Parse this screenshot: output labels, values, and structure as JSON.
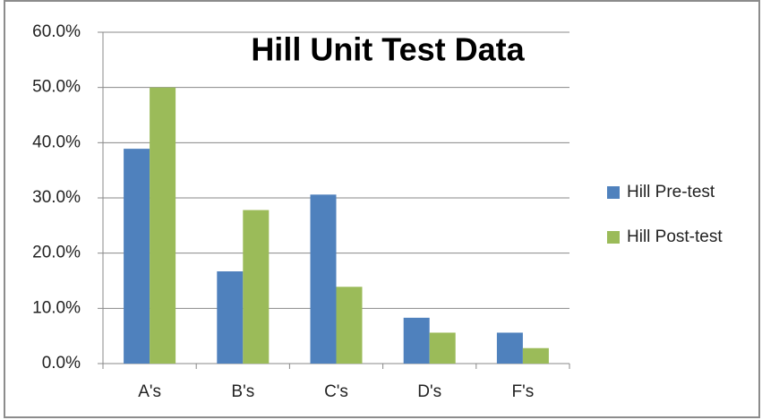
{
  "chart_data": {
    "type": "bar",
    "title": "Hill Unit Test Data",
    "categories": [
      "A's",
      "B's",
      "C's",
      "D's",
      "F's"
    ],
    "series": [
      {
        "name": "Hill Pre-test",
        "color": "#4f81bd",
        "values": [
          38.9,
          16.7,
          30.6,
          8.3,
          5.6
        ]
      },
      {
        "name": "Hill Post-test",
        "color": "#9bbb59",
        "values": [
          50.0,
          27.8,
          13.9,
          5.6,
          2.8
        ]
      }
    ],
    "ylim": [
      0,
      60
    ],
    "yticks": [
      {
        "value": 0,
        "label": "0.0%"
      },
      {
        "value": 10,
        "label": "10.0%"
      },
      {
        "value": 20,
        "label": "20.0%"
      },
      {
        "value": 30,
        "label": "30.0%"
      },
      {
        "value": 40,
        "label": "40.0%"
      },
      {
        "value": 50,
        "label": "50.0%"
      },
      {
        "value": 60,
        "label": "60.0%"
      }
    ],
    "grid": true,
    "legend": "right"
  }
}
